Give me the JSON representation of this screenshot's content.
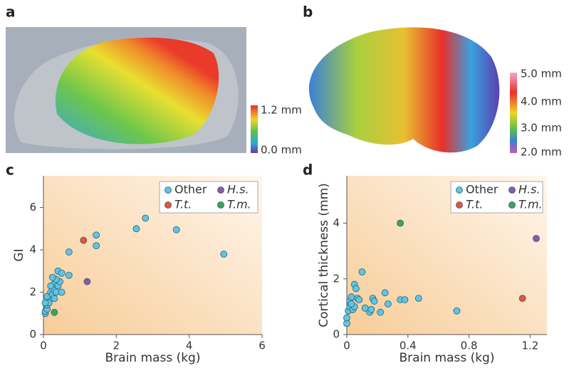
{
  "panels": [
    "a",
    "b",
    "c",
    "d"
  ],
  "colorbar_a": [
    "1.2 mm",
    "0.0 mm"
  ],
  "colorbar_b": [
    "5.0 mm",
    "4.0 mm",
    "3.0 mm",
    "2.0 mm"
  ],
  "chart_data": [
    {
      "type": "scatter",
      "xlabel": "Brain mass (kg)",
      "ylabel": "GI",
      "xlim": [
        0,
        6
      ],
      "xticks": [
        0,
        2,
        4,
        6
      ],
      "ylim": [
        0,
        7.5
      ],
      "yticks": [
        0,
        2,
        4,
        6
      ],
      "series": [
        {
          "name": "Other",
          "color": "#5cc6e6",
          "x": [
            0.05,
            0.05,
            0.1,
            0.1,
            0.15,
            0.1,
            0.2,
            0.15,
            0.25,
            0.3,
            0.3,
            0.35,
            0.4,
            0.45,
            0.4,
            0.5,
            0.5,
            0.35,
            0.25,
            0.2,
            0.7,
            0.7,
            1.45,
            1.45,
            2.55,
            2.8,
            3.65,
            4.95,
            0.3,
            0.05
          ],
          "values": [
            1.0,
            1.1,
            1.2,
            1.4,
            1.6,
            1.8,
            2.0,
            1.5,
            1.9,
            2.1,
            2.4,
            2.0,
            2.3,
            2.5,
            3.0,
            2.9,
            2.0,
            2.6,
            2.7,
            2.3,
            2.8,
            3.9,
            4.7,
            4.2,
            5.0,
            5.5,
            4.95,
            3.8,
            1.7,
            1.5
          ]
        },
        {
          "name": "H.s.",
          "color": "#8a5ca8",
          "x": [
            1.2
          ],
          "values": [
            2.5
          ]
        },
        {
          "name": "T.t.",
          "color": "#e8533b",
          "x": [
            1.1
          ],
          "values": [
            4.45
          ]
        },
        {
          "name": "T.m.",
          "color": "#3aa55d",
          "x": [
            0.3
          ],
          "values": [
            1.05
          ]
        }
      ]
    },
    {
      "type": "scatter",
      "xlabel": "Brain mass (kg)",
      "ylabel": "Cortical thickness (mm)",
      "xlim": [
        0,
        1.31
      ],
      "xticks": [
        0,
        0.4,
        0.8,
        1.2
      ],
      "ylim": [
        0,
        5.7
      ],
      "yticks": [
        0,
        2,
        4
      ],
      "series": [
        {
          "name": "Other",
          "color": "#5cc6e6",
          "x": [
            0.0,
            0.0,
            0.01,
            0.02,
            0.02,
            0.03,
            0.04,
            0.05,
            0.06,
            0.05,
            0.07,
            0.1,
            0.12,
            0.15,
            0.17,
            0.18,
            0.16,
            0.22,
            0.25,
            0.27,
            0.35,
            0.38,
            0.47,
            0.72,
            0.03,
            0.08
          ],
          "values": [
            0.4,
            0.6,
            0.85,
            1.0,
            1.2,
            1.35,
            0.9,
            1.8,
            1.65,
            1.0,
            1.3,
            2.25,
            0.95,
            0.8,
            1.3,
            1.2,
            0.9,
            0.8,
            1.5,
            1.1,
            1.25,
            1.25,
            1.3,
            0.85,
            1.1,
            1.25
          ]
        },
        {
          "name": "H.s.",
          "color": "#8a5ca8",
          "x": [
            1.24
          ],
          "values": [
            3.45
          ]
        },
        {
          "name": "T.t.",
          "color": "#e8533b",
          "x": [
            1.15
          ],
          "values": [
            1.3
          ]
        },
        {
          "name": "T.m.",
          "color": "#3aa55d",
          "x": [
            0.35
          ],
          "values": [
            4.0
          ]
        }
      ]
    }
  ]
}
